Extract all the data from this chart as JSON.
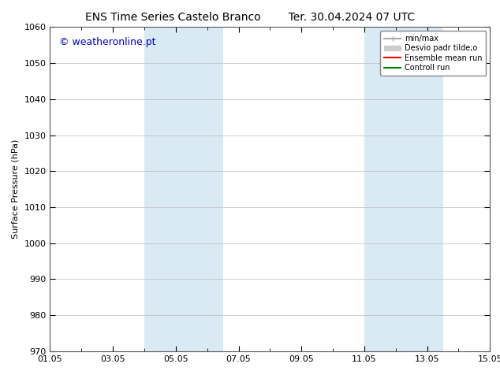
{
  "title_left": "ENS Time Series Castelo Branco",
  "title_right": "Ter. 30.04.2024 07 UTC",
  "ylabel": "Surface Pressure (hPa)",
  "ylim": [
    970,
    1060
  ],
  "yticks": [
    970,
    980,
    990,
    1000,
    1010,
    1020,
    1030,
    1040,
    1050,
    1060
  ],
  "xlim": [
    0,
    14
  ],
  "xtick_labels": [
    "01.05",
    "03.05",
    "05.05",
    "07.05",
    "09.05",
    "11.05",
    "13.05",
    "15.05"
  ],
  "xtick_positions_days": [
    0,
    2,
    4,
    6,
    8,
    10,
    12,
    14
  ],
  "shade_bands": [
    {
      "start_day": 3.0,
      "end_day": 5.5
    },
    {
      "start_day": 10.0,
      "end_day": 12.5
    }
  ],
  "shade_color": "#daeaf5",
  "watermark_text": "© weatheronline.pt",
  "watermark_color": "#0000cc",
  "legend_entries": [
    {
      "label": "min/max",
      "color": "#aaaaaa",
      "lw": 1.5
    },
    {
      "label": "Desvio padr tilde;o",
      "color": "#cccccc",
      "lw": 8
    },
    {
      "label": "Ensemble mean run",
      "color": "#ff0000",
      "lw": 1.5
    },
    {
      "label": "Controll run",
      "color": "#008000",
      "lw": 1.5
    }
  ],
  "bg_color": "#ffffff",
  "plot_bg_color": "#ffffff",
  "grid_color": "#bbbbbb",
  "title_fontsize": 10,
  "label_fontsize": 8,
  "tick_fontsize": 8,
  "watermark_fontsize": 9,
  "legend_fontsize": 7
}
